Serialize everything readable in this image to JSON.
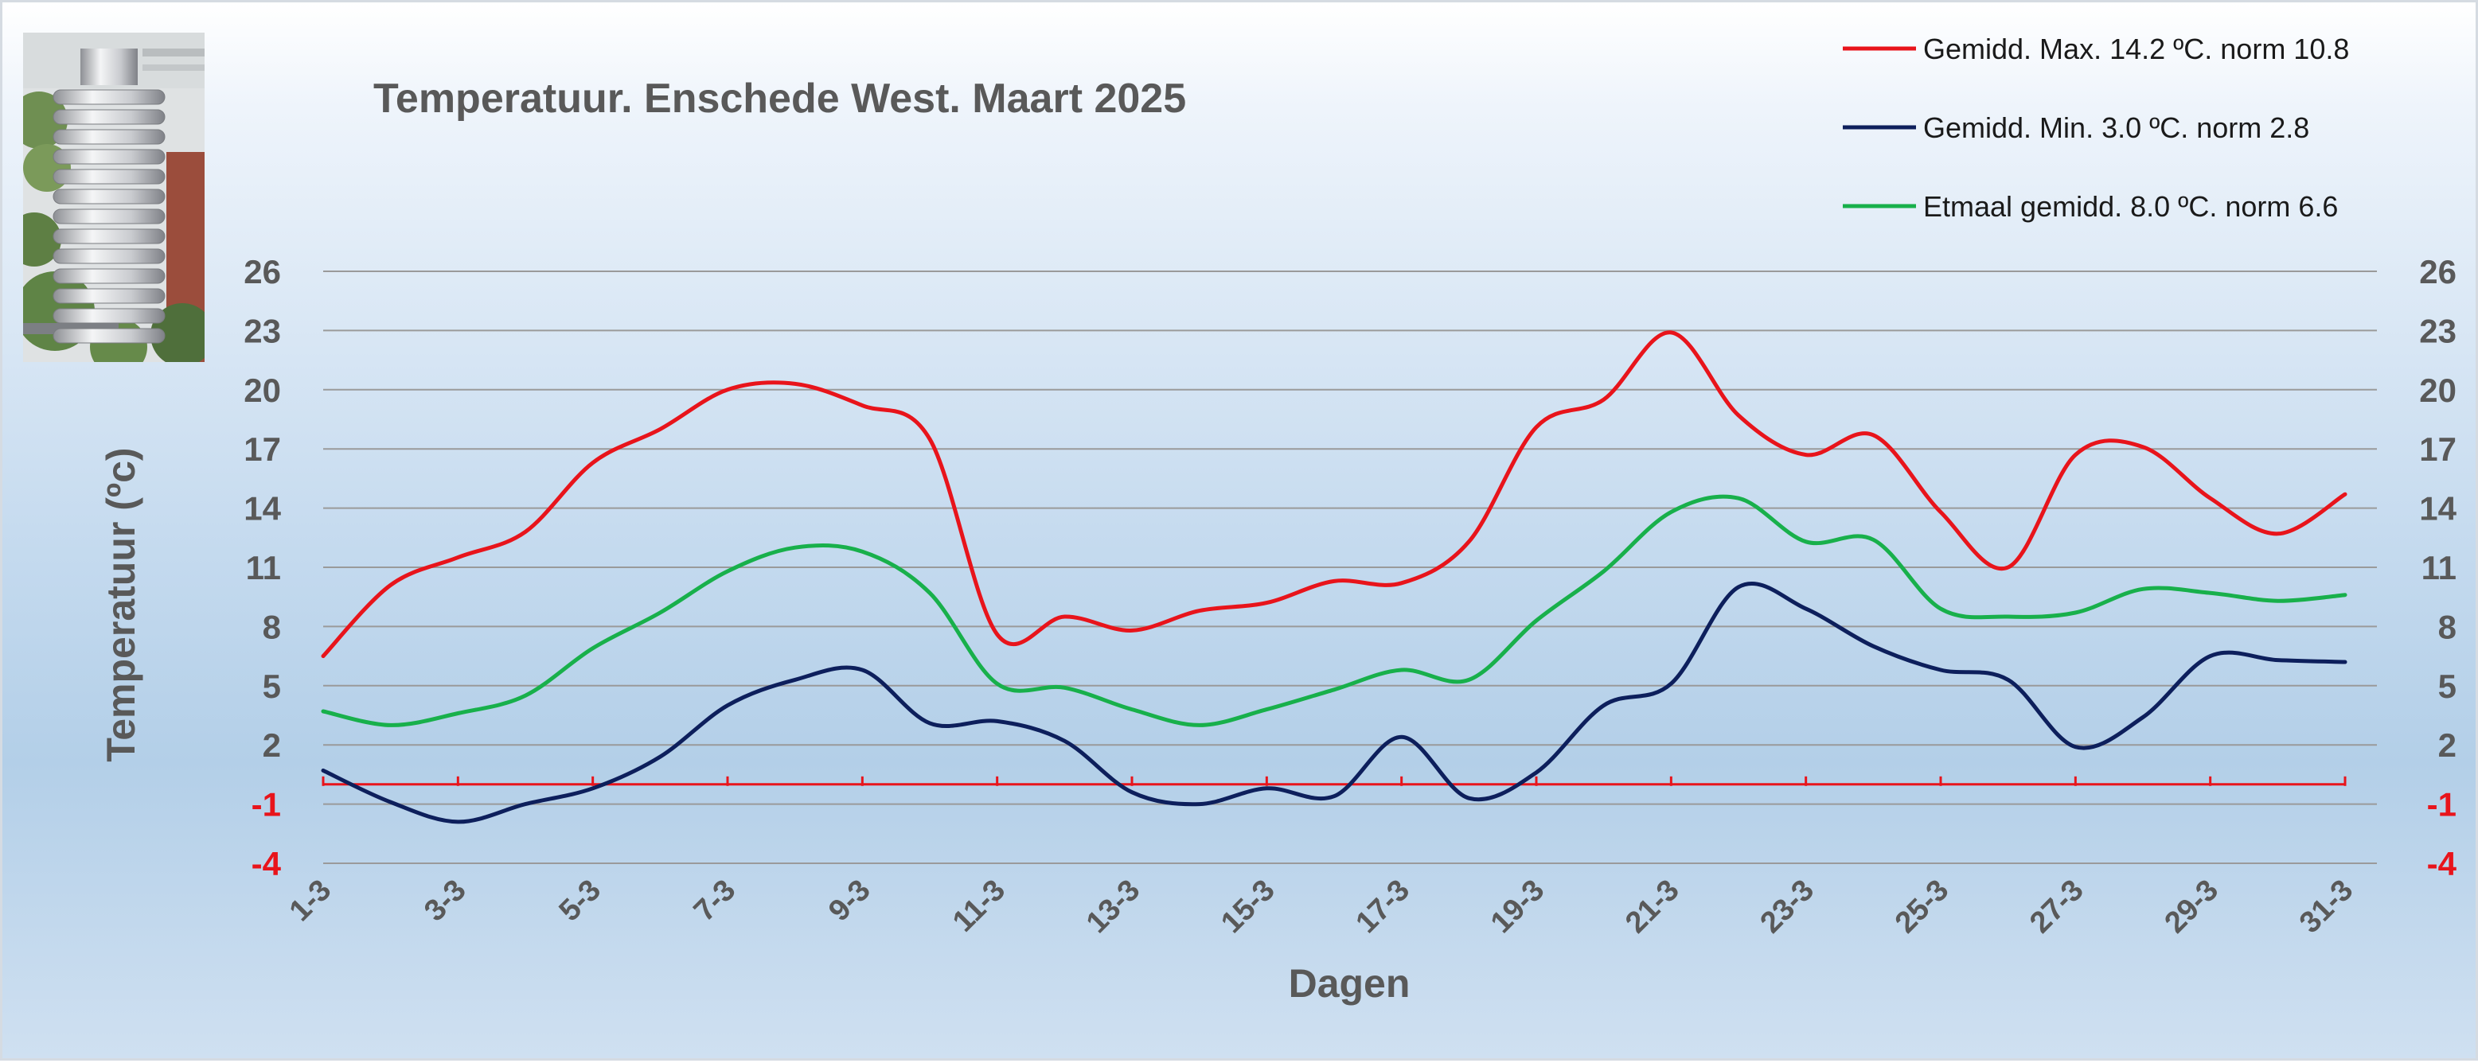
{
  "chart_data": {
    "type": "line",
    "title": "Temperatuur. Enschede West. Maart 2025",
    "xlabel": "Dagen",
    "ylabel": "Temperatuur (ºc)",
    "ylim": [
      -4,
      26
    ],
    "yticks": [
      {
        "label": "26",
        "value": 26
      },
      {
        "label": "23",
        "value": 23
      },
      {
        "label": "20",
        "value": 20
      },
      {
        "label": "17",
        "value": 17
      },
      {
        "label": "14",
        "value": 14
      },
      {
        "label": "11",
        "value": 11
      },
      {
        "label": "8",
        "value": 8
      },
      {
        "label": "5",
        "value": 5
      },
      {
        "label": "2",
        "value": 2
      },
      {
        "label": "-1",
        "value": -1,
        "negative": true
      },
      {
        "label": "-4",
        "value": -4,
        "negative": true
      }
    ],
    "zero_line_color": "#e8141b",
    "grid": true,
    "legend_position": "top-right",
    "x": [
      "1-3",
      "2-3",
      "3-3",
      "4-3",
      "5-3",
      "6-3",
      "7-3",
      "8-3",
      "9-3",
      "10-3",
      "11-3",
      "12-3",
      "13-3",
      "14-3",
      "15-3",
      "16-3",
      "17-3",
      "18-3",
      "19-3",
      "20-3",
      "21-3",
      "22-3",
      "23-3",
      "24-3",
      "25-3",
      "26-3",
      "27-3",
      "28-3",
      "29-3",
      "30-3",
      "31-3"
    ],
    "series": [
      {
        "name": "Gemidd. Max. 14.2  ºC. norm 10.8",
        "color": "#e8141b",
        "values": [
          6.5,
          10.1,
          11.5,
          12.8,
          16.3,
          18.0,
          20.0,
          20.3,
          19.2,
          17.5,
          7.6,
          8.5,
          7.8,
          8.8,
          9.2,
          10.3,
          10.2,
          12.3,
          18.1,
          19.5,
          22.9,
          18.7,
          16.7,
          17.7,
          13.8,
          11.0,
          16.7,
          17.1,
          14.5,
          12.7,
          14.7
        ]
      },
      {
        "name": "Gemidd. Min. 3.0  ºC. norm 2.8",
        "color": "#0d1f5c",
        "values": [
          0.7,
          -0.9,
          -1.9,
          -1.0,
          -0.2,
          1.4,
          4.0,
          5.3,
          5.8,
          3.1,
          3.2,
          2.2,
          -0.4,
          -1.0,
          -0.2,
          -0.6,
          2.4,
          -0.7,
          0.6,
          4.0,
          5.1,
          10.0,
          8.9,
          7.0,
          5.8,
          5.3,
          1.9,
          3.4,
          6.5,
          6.3,
          6.2
        ]
      },
      {
        "name": "Etmaal gemidd. 8.0  ºC. norm 6.6",
        "color": "#18b04b",
        "values": [
          3.7,
          3.0,
          3.6,
          4.5,
          6.9,
          8.7,
          10.8,
          12.0,
          11.8,
          9.7,
          5.1,
          4.9,
          3.8,
          3.0,
          3.8,
          4.8,
          5.8,
          5.3,
          8.3,
          10.8,
          13.8,
          14.5,
          12.3,
          12.4,
          8.9,
          8.5,
          8.7,
          9.9,
          9.7,
          9.3,
          9.6
        ]
      }
    ]
  }
}
